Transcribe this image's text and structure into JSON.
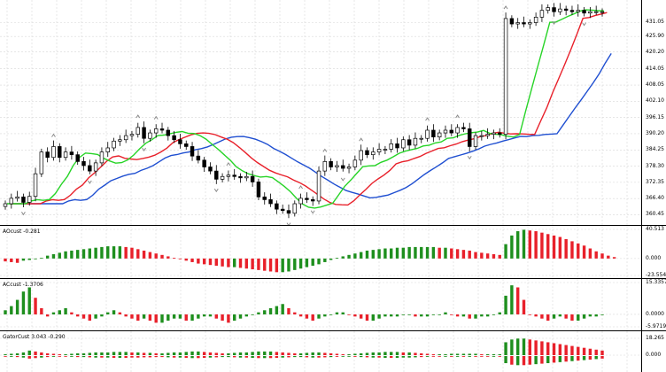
{
  "colors": {
    "background": "#ffffff",
    "grid": "#d8d8d8",
    "jaw": "#1f4fd1",
    "teeth": "#e8202a",
    "lips": "#27d427",
    "up_bar": "#1e8f1e",
    "down_bar": "#e8202a",
    "candle": "#000000",
    "fractal": "#8c8c8c"
  },
  "main": {
    "price_ticks": [
      "431.05",
      "425.90",
      "420.20",
      "414.05",
      "408.05",
      "402.10",
      "396.15",
      "390.20",
      "384.25",
      "378.30",
      "372.35",
      "366.40",
      "360.45"
    ]
  },
  "panes": [
    {
      "title": "AOcust -0.281",
      "ticks": [
        "40.513",
        "0.000",
        "-23.554"
      ]
    },
    {
      "title": "ACcust -1.3706",
      "ticks": [
        "15.3357",
        "0.0000",
        "-5.9719"
      ]
    },
    {
      "title": "GatorCust 3.043 -0.290",
      "ticks": [
        "18.265",
        "0.000"
      ]
    }
  ],
  "chart_data": {
    "type": "candlestick",
    "indicators": [
      "Alligator",
      "Fractals"
    ],
    "close": [
      364.5,
      366.5,
      367.0,
      365.0,
      367.2,
      375.5,
      383.5,
      381.5,
      385.5,
      381.5,
      383.5,
      382.5,
      380.0,
      378.5,
      376.5,
      379.5,
      383.5,
      385.0,
      387.5,
      388.0,
      389.5,
      390.0,
      392.5,
      388.5,
      390.5,
      392.0,
      391.5,
      389.5,
      388.0,
      386.5,
      385.5,
      382.0,
      380.5,
      378.0,
      376.5,
      373.5,
      374.5,
      375.0,
      374.5,
      374.0,
      374.5,
      372.5,
      367.0,
      366.0,
      364.5,
      362.5,
      362.0,
      361.0,
      364.5,
      366.5,
      366.0,
      365.5,
      376.5,
      380.0,
      378.0,
      378.5,
      377.5,
      378.0,
      380.5,
      384.0,
      382.5,
      383.5,
      384.5,
      384.5,
      386.5,
      385.0,
      388.0,
      386.0,
      388.5,
      388.5,
      391.5,
      389.0,
      390.5,
      391.5,
      390.5,
      392.5,
      392.0,
      385.5,
      389.5,
      389.5,
      390.0,
      390.5,
      390.0,
      432.5,
      430.5,
      431.0,
      430.5,
      431.0,
      433.0,
      435.5,
      436.5,
      435.0,
      436.0,
      435.5,
      435.0,
      435.5,
      434.5,
      435.0,
      435.0,
      435.0
    ],
    "ylim": [
      358.0,
      438.0
    ],
    "ao": [
      -4,
      -5,
      -6,
      -3,
      -2,
      -1,
      1,
      4,
      6,
      8,
      10,
      11,
      12,
      13,
      14,
      15,
      16,
      17,
      17,
      17,
      16,
      15,
      13,
      11,
      9,
      7,
      5,
      3,
      1,
      -1,
      -3,
      -5,
      -7,
      -8,
      -9,
      -10,
      -11,
      -12,
      -12,
      -13,
      -14,
      -15,
      -16,
      -17,
      -18,
      -19,
      -19,
      -18,
      -16,
      -14,
      -12,
      -10,
      -8,
      -5,
      -2,
      1,
      3,
      5,
      7,
      9,
      11,
      12,
      13,
      14,
      14,
      15,
      15,
      16,
      16,
      16,
      16,
      16,
      15,
      15,
      14,
      13,
      12,
      11,
      9,
      8,
      7,
      6,
      5,
      20,
      32,
      38,
      40,
      39,
      38,
      36,
      34,
      32,
      30,
      27,
      24,
      21,
      18,
      14,
      10,
      7,
      4,
      2
    ],
    "ac": [
      2,
      4,
      7,
      11,
      13,
      8,
      3,
      -1,
      1,
      2,
      3,
      1,
      -1,
      -2,
      -3,
      -2,
      -1,
      1,
      2,
      1,
      -1,
      -2,
      -3,
      -2,
      -3,
      -4,
      -4,
      -3,
      -2,
      -2,
      -3,
      -3,
      -2,
      -1,
      -1,
      -2,
      -3,
      -4,
      -3,
      -2,
      -1,
      0,
      1,
      2,
      3,
      4,
      5,
      3,
      1,
      -1,
      -2,
      -3,
      -2,
      -1,
      0,
      1,
      1,
      0,
      -1,
      -2,
      -3,
      -3,
      -2,
      -1,
      -1,
      -1,
      0,
      0,
      -1,
      -1,
      -1,
      0,
      0,
      1,
      0,
      -1,
      -1,
      -2,
      -2,
      -1,
      -1,
      0,
      1,
      9,
      14,
      13,
      7,
      0,
      -1,
      -2,
      -3,
      -2,
      -1,
      -2,
      -3,
      -3,
      -2,
      -1,
      -1,
      0
    ],
    "gator": [
      1,
      1.5,
      2,
      3,
      5,
      4,
      3,
      2,
      1.5,
      1,
      1,
      1.5,
      2,
      2,
      2.5,
      3,
      3,
      3,
      3.5,
      3.5,
      3.5,
      3,
      3,
      2.5,
      2.5,
      2,
      2,
      2.5,
      3,
      3,
      3.5,
      4,
      4,
      3.5,
      3,
      2.5,
      2,
      2,
      2.5,
      3,
      3,
      3.5,
      4,
      4,
      4,
      3.5,
      3,
      2.5,
      2,
      2,
      2.5,
      3,
      3,
      2.5,
      2,
      1.5,
      1,
      1,
      1.5,
      2,
      2.5,
      3,
      3,
      3.5,
      3.5,
      3.5,
      3,
      3,
      2.5,
      2,
      1.5,
      1,
      1,
      1,
      1.5,
      1.5,
      1.5,
      1.5,
      1.5,
      1,
      1,
      1,
      1,
      14,
      17,
      18,
      18,
      17,
      16,
      15,
      14,
      13,
      12,
      11,
      10,
      9,
      8,
      7,
      6,
      5
    ]
  }
}
